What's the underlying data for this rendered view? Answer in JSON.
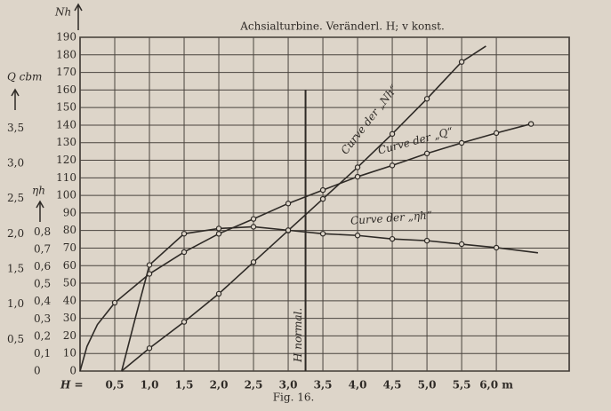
{
  "chart_data": {
    "type": "line",
    "title": "Achsialturbine.  Veränderl. H; v konst.",
    "caption": "Fig. 16.",
    "x_label": "H =",
    "xlim": [
      0,
      7.05
    ],
    "xticks": [
      {
        "value": 0.5,
        "label": "0,5"
      },
      {
        "value": 1.0,
        "label": "1,0"
      },
      {
        "value": 1.5,
        "label": "1,5"
      },
      {
        "value": 2.0,
        "label": "2,0"
      },
      {
        "value": 2.5,
        "label": "2,5"
      },
      {
        "value": 3.0,
        "label": "3,0"
      },
      {
        "value": 3.5,
        "label": "3,5"
      },
      {
        "value": 4.0,
        "label": "4,0"
      },
      {
        "value": 4.5,
        "label": "4,5"
      },
      {
        "value": 5.0,
        "label": "5,0"
      },
      {
        "value": 5.5,
        "label": "5,5"
      },
      {
        "value": 6.0,
        "label": "6,0 m"
      }
    ],
    "y_label": "Nh",
    "ylim": [
      0,
      190
    ],
    "yticks": [
      0,
      10,
      20,
      30,
      40,
      50,
      60,
      70,
      80,
      90,
      100,
      110,
      120,
      130,
      140,
      150,
      160,
      170,
      180,
      190
    ],
    "y2_label": "Q cbm",
    "y2lim": [
      0.05,
      4.79
    ],
    "y2ticks": [
      {
        "value": 0.5,
        "label": "0,5"
      },
      {
        "value": 1.0,
        "label": "1,0"
      },
      {
        "value": 1.5,
        "label": "1,5"
      },
      {
        "value": 2.0,
        "label": "2,0"
      },
      {
        "value": 2.5,
        "label": "2,5"
      },
      {
        "value": 3.0,
        "label": "3,0"
      },
      {
        "value": 3.5,
        "label": "3,5"
      }
    ],
    "y3_label": "ηh",
    "y3lim": [
      0,
      1.92
    ],
    "y3ticks": [
      0,
      {
        "value": 0.1,
        "label": "0,1"
      },
      {
        "value": 0.2,
        "label": "0,2"
      },
      {
        "value": 0.3,
        "label": "0,3"
      },
      {
        "value": 0.4,
        "label": "0,4"
      },
      {
        "value": 0.5,
        "label": "0,5"
      },
      {
        "value": 0.6,
        "label": "0,6"
      },
      {
        "value": 0.7,
        "label": "0,7"
      },
      {
        "value": 0.8,
        "label": "0,8"
      }
    ],
    "grid": true,
    "color": "#2e2a26",
    "normal_line": {
      "x": 3.25,
      "label": "H normal."
    },
    "series": [
      {
        "name": "Curve der „Nh“",
        "axis": "y",
        "x": [
          0.6,
          1.0,
          1.5,
          2.0,
          2.5,
          3.0,
          3.5,
          4.0,
          4.5,
          5.0,
          5.5,
          5.85
        ],
        "values": [
          0,
          13,
          28,
          44,
          62,
          80,
          98,
          116,
          135,
          155,
          176,
          185
        ]
      },
      {
        "name": "Curve der „Q“",
        "axis": "y2",
        "x": [
          0,
          0.1,
          0.25,
          0.5,
          1.0,
          1.5,
          2.0,
          2.5,
          3.0,
          3.5,
          4.0,
          4.5,
          5.0,
          5.5,
          6.0,
          6.5
        ],
        "values": [
          0.05,
          0.4,
          0.71,
          1.02,
          1.43,
          1.74,
          2.0,
          2.21,
          2.43,
          2.62,
          2.81,
          2.97,
          3.14,
          3.29,
          3.43,
          3.56
        ]
      },
      {
        "name": "Curve der „ηh“",
        "axis": "y3",
        "x": [
          0.6,
          0.8,
          1.0,
          1.5,
          2.0,
          2.5,
          3.0,
          3.5,
          4.0,
          4.5,
          5.0,
          5.5,
          6.0,
          6.6
        ],
        "values": [
          0,
          0.31,
          0.61,
          0.79,
          0.82,
          0.83,
          0.81,
          0.79,
          0.78,
          0.76,
          0.75,
          0.73,
          0.71,
          0.68
        ]
      }
    ]
  }
}
